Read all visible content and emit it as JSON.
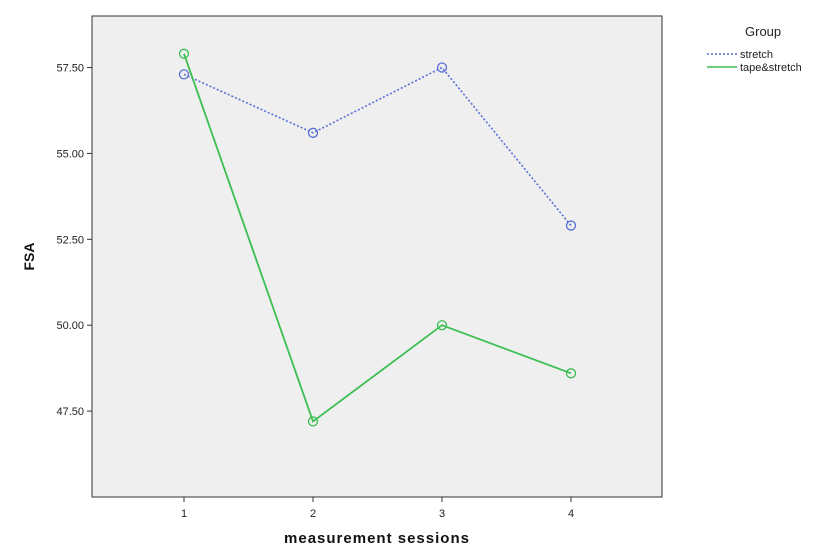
{
  "chart_data": {
    "type": "line",
    "title": "",
    "xlabel": "measurement sessions",
    "ylabel": "FSA",
    "categories": [
      "1",
      "2",
      "3",
      "4"
    ],
    "ylim": [
      45.0,
      59.0
    ],
    "yticks": [
      "47.50",
      "50.00",
      "52.50",
      "55.00",
      "57.50"
    ],
    "yticks_values": [
      47.5,
      50.0,
      52.5,
      55.0,
      57.5
    ],
    "grid": false,
    "legend": {
      "title": "Group",
      "placement": "right"
    },
    "series": [
      {
        "name": "stretch",
        "values": [
          57.3,
          55.6,
          57.5,
          52.9
        ],
        "color": "#5a6fd6",
        "style": "dotted"
      },
      {
        "name": "tape&stretch",
        "values": [
          57.9,
          47.2,
          50.0,
          48.6
        ],
        "color": "#3cbf52",
        "style": "solid"
      }
    ],
    "plot_background": "#efefef"
  }
}
